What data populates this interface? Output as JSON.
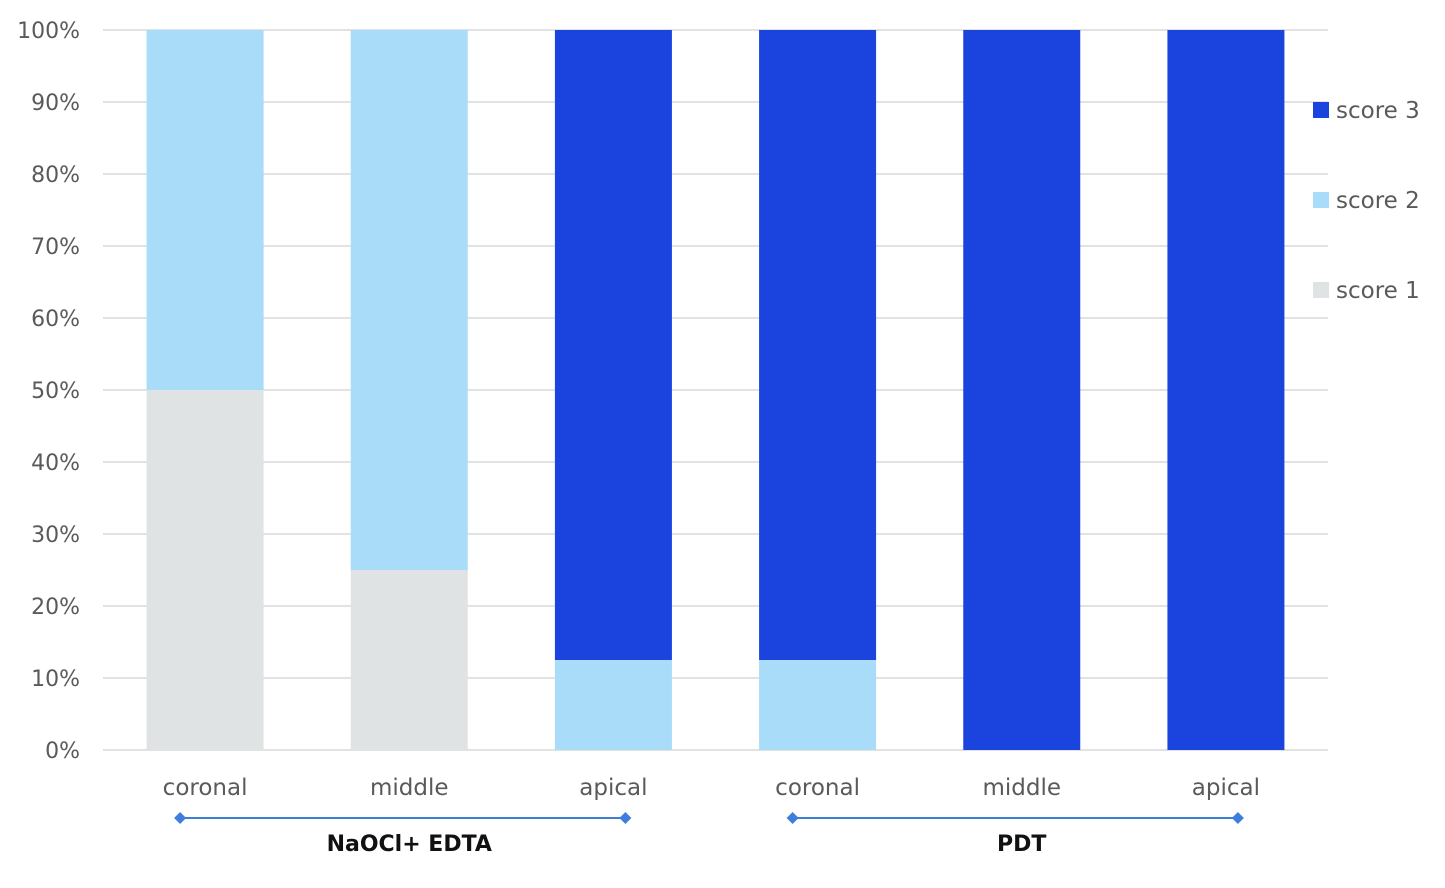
{
  "chart_data": {
    "type": "bar",
    "stacked": true,
    "percent_stacked": true,
    "categories": [
      "coronal",
      "middle",
      "apical",
      "coronal",
      "middle",
      "apical"
    ],
    "groups": [
      {
        "label": "NaOCl+ EDTA",
        "category_indices": [
          0,
          1,
          2
        ]
      },
      {
        "label": "PDT",
        "category_indices": [
          3,
          4,
          5
        ]
      }
    ],
    "series": [
      {
        "name": "score 1",
        "color": "#e0e3e3",
        "values": [
          50,
          25,
          0,
          0,
          0,
          0
        ]
      },
      {
        "name": "score 2",
        "color": "#a8dcf8",
        "values": [
          50,
          75,
          12.5,
          12.5,
          0,
          0
        ]
      },
      {
        "name": "score 3",
        "color": "#1a44dd",
        "values": [
          0,
          0,
          87.5,
          87.5,
          100,
          100
        ]
      }
    ],
    "legend_order": [
      "score 3",
      "score 2",
      "score 1"
    ],
    "y_ticks": [
      "0%",
      "10%",
      "20%",
      "30%",
      "40%",
      "50%",
      "60%",
      "70%",
      "80%",
      "90%",
      "100%"
    ],
    "ylim": [
      0,
      100
    ],
    "grid": true,
    "legend_position": "right",
    "group_bracket_color": "#3f7ddc"
  }
}
